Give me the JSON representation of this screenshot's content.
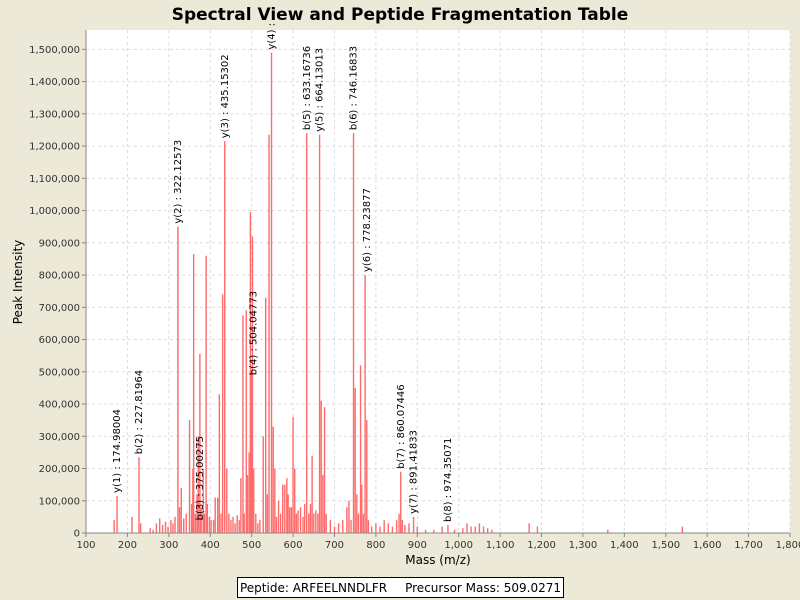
{
  "chart_data": {
    "type": "bar",
    "title": "Spectral View and Peptide Fragmentation Table",
    "xlabel": "Mass (m/z)",
    "ylabel": "Peak Intensity",
    "xlim": [
      100,
      1800
    ],
    "ylim": [
      0,
      1560000
    ],
    "x_ticks": [
      100,
      200,
      300,
      400,
      500,
      600,
      700,
      800,
      900,
      1000,
      1100,
      1200,
      1300,
      1400,
      1500,
      1600,
      1700,
      1800
    ],
    "x_tick_labels": [
      "100",
      "200",
      "300",
      "400",
      "500",
      "600",
      "700",
      "800",
      "900",
      "1,000",
      "1,100",
      "1,200",
      "1,300",
      "1,400",
      "1,500",
      "1,600",
      "1,700",
      "1,800"
    ],
    "y_ticks": [
      0,
      100000,
      200000,
      300000,
      400000,
      500000,
      600000,
      700000,
      800000,
      900000,
      1000000,
      1100000,
      1200000,
      1300000,
      1400000,
      1500000
    ],
    "y_tick_labels": [
      "0",
      "100,000",
      "200,000",
      "300,000",
      "400,000",
      "500,000",
      "600,000",
      "700,000",
      "800,000",
      "900,000",
      "1,000,000",
      "1,100,000",
      "1,200,000",
      "1,300,000",
      "1,400,000",
      "1,500,000"
    ],
    "grid": true,
    "bar_color": "#ff6a6a",
    "peaks": [
      [
        168,
        40000
      ],
      [
        175,
        115000
      ],
      [
        211,
        50000
      ],
      [
        228,
        235000
      ],
      [
        232,
        30000
      ],
      [
        255,
        15000
      ],
      [
        262,
        10000
      ],
      [
        270,
        30000
      ],
      [
        278,
        45000
      ],
      [
        285,
        25000
      ],
      [
        292,
        35000
      ],
      [
        298,
        20000
      ],
      [
        305,
        40000
      ],
      [
        310,
        30000
      ],
      [
        315,
        50000
      ],
      [
        322,
        950000
      ],
      [
        326,
        80000
      ],
      [
        330,
        140000
      ],
      [
        336,
        45000
      ],
      [
        342,
        60000
      ],
      [
        350,
        350000
      ],
      [
        355,
        90000
      ],
      [
        358,
        200000
      ],
      [
        360,
        865000
      ],
      [
        364,
        60000
      ],
      [
        368,
        120000
      ],
      [
        371,
        300000
      ],
      [
        375,
        555000
      ],
      [
        378,
        80000
      ],
      [
        383,
        200000
      ],
      [
        386,
        60000
      ],
      [
        390,
        860000
      ],
      [
        393,
        90000
      ],
      [
        398,
        50000
      ],
      [
        402,
        40000
      ],
      [
        408,
        40000
      ],
      [
        412,
        110000
      ],
      [
        418,
        110000
      ],
      [
        422,
        430000
      ],
      [
        426,
        60000
      ],
      [
        430,
        740000
      ],
      [
        435,
        1215000
      ],
      [
        440,
        200000
      ],
      [
        445,
        60000
      ],
      [
        450,
        40000
      ],
      [
        455,
        50000
      ],
      [
        460,
        30000
      ],
      [
        465,
        55000
      ],
      [
        470,
        40000
      ],
      [
        474,
        170000
      ],
      [
        479,
        675000
      ],
      [
        482,
        60000
      ],
      [
        487,
        690000
      ],
      [
        490,
        180000
      ],
      [
        494,
        250000
      ],
      [
        497,
        995000
      ],
      [
        500,
        500000
      ],
      [
        502,
        920000
      ],
      [
        505,
        200000
      ],
      [
        510,
        60000
      ],
      [
        515,
        30000
      ],
      [
        520,
        40000
      ],
      [
        528,
        300000
      ],
      [
        534,
        730000
      ],
      [
        538,
        120000
      ],
      [
        542,
        1235000
      ],
      [
        548,
        1490000
      ],
      [
        552,
        330000
      ],
      [
        556,
        200000
      ],
      [
        560,
        50000
      ],
      [
        565,
        100000
      ],
      [
        570,
        60000
      ],
      [
        575,
        150000
      ],
      [
        580,
        150000
      ],
      [
        585,
        170000
      ],
      [
        588,
        120000
      ],
      [
        592,
        80000
      ],
      [
        596,
        80000
      ],
      [
        600,
        360000
      ],
      [
        604,
        200000
      ],
      [
        608,
        60000
      ],
      [
        612,
        70000
      ],
      [
        618,
        80000
      ],
      [
        624,
        50000
      ],
      [
        628,
        90000
      ],
      [
        633,
        1240000
      ],
      [
        638,
        60000
      ],
      [
        642,
        90000
      ],
      [
        646,
        240000
      ],
      [
        650,
        60000
      ],
      [
        655,
        70000
      ],
      [
        660,
        60000
      ],
      [
        664,
        1235000
      ],
      [
        668,
        410000
      ],
      [
        672,
        180000
      ],
      [
        676,
        390000
      ],
      [
        680,
        60000
      ],
      [
        690,
        40000
      ],
      [
        700,
        20000
      ],
      [
        710,
        30000
      ],
      [
        720,
        40000
      ],
      [
        730,
        80000
      ],
      [
        735,
        100000
      ],
      [
        740,
        40000
      ],
      [
        746,
        1240000
      ],
      [
        750,
        450000
      ],
      [
        754,
        120000
      ],
      [
        758,
        60000
      ],
      [
        763,
        520000
      ],
      [
        766,
        150000
      ],
      [
        770,
        60000
      ],
      [
        774,
        800000
      ],
      [
        778,
        350000
      ],
      [
        782,
        40000
      ],
      [
        790,
        20000
      ],
      [
        800,
        30000
      ],
      [
        810,
        20000
      ],
      [
        820,
        40000
      ],
      [
        830,
        30000
      ],
      [
        840,
        20000
      ],
      [
        850,
        40000
      ],
      [
        856,
        60000
      ],
      [
        860,
        190000
      ],
      [
        864,
        40000
      ],
      [
        870,
        25000
      ],
      [
        880,
        30000
      ],
      [
        891,
        50000
      ],
      [
        900,
        20000
      ],
      [
        920,
        10000
      ],
      [
        940,
        10000
      ],
      [
        960,
        20000
      ],
      [
        974,
        25000
      ],
      [
        990,
        10000
      ],
      [
        1010,
        15000
      ],
      [
        1020,
        30000
      ],
      [
        1030,
        20000
      ],
      [
        1040,
        20000
      ],
      [
        1050,
        30000
      ],
      [
        1060,
        20000
      ],
      [
        1070,
        15000
      ],
      [
        1080,
        10000
      ],
      [
        1170,
        30000
      ],
      [
        1190,
        20000
      ],
      [
        1360,
        10000
      ],
      [
        1540,
        20000
      ]
    ],
    "annotations": [
      {
        "mz": 174.98,
        "intensity": 115000,
        "text": "y(1) : 174.98004"
      },
      {
        "mz": 227.82,
        "intensity": 235000,
        "text": "b(2) : 227.81964"
      },
      {
        "mz": 322.13,
        "intensity": 950000,
        "text": "y(2) : 322.12573"
      },
      {
        "mz": 375.0,
        "intensity": 30000,
        "text": "b(3) : 375.00275"
      },
      {
        "mz": 435.15,
        "intensity": 1215000,
        "text": "y(3) : 435.15302"
      },
      {
        "mz": 504.05,
        "intensity": 480000,
        "text": "b(4) : 504.04773"
      },
      {
        "mz": 548.0,
        "intensity": 1490000,
        "text": "y(4) :"
      },
      {
        "mz": 633.17,
        "intensity": 1240000,
        "text": "b(5) : 633.16736"
      },
      {
        "mz": 664.13,
        "intensity": 1235000,
        "text": "y(5) : 664.13013"
      },
      {
        "mz": 746.17,
        "intensity": 1240000,
        "text": "b(6) : 746.16833"
      },
      {
        "mz": 778.24,
        "intensity": 800000,
        "text": "y(6) : 778.23877"
      },
      {
        "mz": 860.07,
        "intensity": 190000,
        "text": "b(7) : 860.07446"
      },
      {
        "mz": 891.42,
        "intensity": 50000,
        "text": "y(7) : 891.41833"
      },
      {
        "mz": 974.35,
        "intensity": 25000,
        "text": "b(8) : 974.35071"
      }
    ]
  },
  "legend": {
    "peptide": "Peptide: ARFEELNNDLFR",
    "precursor": "Precursor Mass: 509.0271"
  }
}
